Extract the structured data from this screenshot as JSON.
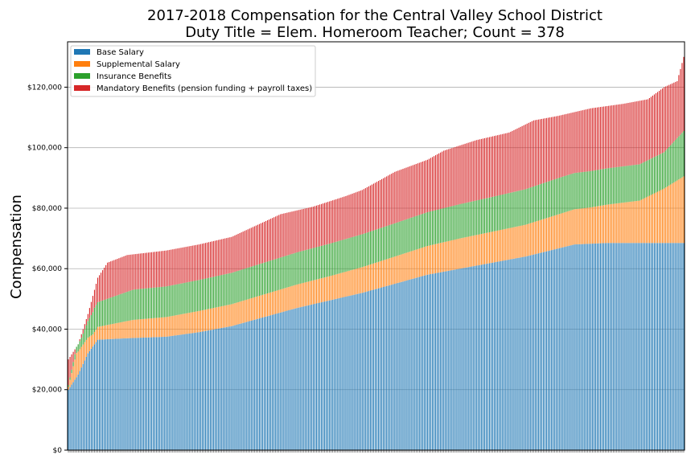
{
  "chart_data": {
    "type": "bar",
    "stacked": true,
    "title": "2017-2018 Compensation for the Central Valley School District",
    "subtitle": "Duty Title = Elem. Homeroom Teacher; Count = 378",
    "xlabel": "",
    "ylabel": "Compensation",
    "ylim": [
      0,
      135000
    ],
    "yticks": [
      0,
      20000,
      40000,
      60000,
      80000,
      100000,
      120000
    ],
    "ytick_labels": [
      "$0",
      "$20,000",
      "$40,000",
      "$60,000",
      "$80,000",
      "$100,000",
      "$120,000"
    ],
    "grid": "horizontal",
    "legend_position": "top-left",
    "colors": {
      "base": "#1f77b4",
      "supplemental": "#ff7f0e",
      "insurance": "#2ca02c",
      "mandatory": "#d62728"
    },
    "series_names": [
      "Base Salary",
      "Supplemental Salary",
      "Insurance Benefits",
      "Mandatory Benefits (pension funding + payroll taxes)"
    ],
    "count": 378,
    "total_profile": [
      [
        0,
        30000
      ],
      [
        6,
        35000
      ],
      [
        12,
        45000
      ],
      [
        18,
        57000
      ],
      [
        24,
        62000
      ],
      [
        36,
        64500
      ],
      [
        60,
        66000
      ],
      [
        80,
        68000
      ],
      [
        100,
        70500
      ],
      [
        110,
        73000
      ],
      [
        130,
        78000
      ],
      [
        150,
        80500
      ],
      [
        170,
        84000
      ],
      [
        180,
        86000
      ],
      [
        190,
        89000
      ],
      [
        200,
        92000
      ],
      [
        220,
        96000
      ],
      [
        230,
        99000
      ],
      [
        250,
        102500
      ],
      [
        270,
        105000
      ],
      [
        285,
        109000
      ],
      [
        300,
        110500
      ],
      [
        320,
        113000
      ],
      [
        340,
        114500
      ],
      [
        355,
        116000
      ],
      [
        365,
        120000
      ],
      [
        373,
        122000
      ],
      [
        377,
        130000
      ]
    ],
    "base_profile": [
      [
        0,
        20000
      ],
      [
        6,
        25000
      ],
      [
        12,
        32000
      ],
      [
        18,
        36500
      ],
      [
        36,
        37000
      ],
      [
        60,
        37500
      ],
      [
        80,
        39000
      ],
      [
        100,
        41000
      ],
      [
        120,
        44000
      ],
      [
        140,
        47000
      ],
      [
        160,
        49500
      ],
      [
        180,
        52000
      ],
      [
        200,
        55000
      ],
      [
        220,
        58000
      ],
      [
        240,
        60000
      ],
      [
        260,
        62000
      ],
      [
        280,
        64000
      ],
      [
        295,
        66000
      ],
      [
        310,
        68000
      ],
      [
        330,
        68500
      ],
      [
        377,
        68500
      ]
    ],
    "supplemental_profile": [
      [
        0,
        1000
      ],
      [
        5,
        8000
      ],
      [
        15,
        4000
      ],
      [
        40,
        6000
      ],
      [
        80,
        7000
      ],
      [
        120,
        7500
      ],
      [
        160,
        8000
      ],
      [
        200,
        9000
      ],
      [
        240,
        10000
      ],
      [
        280,
        10500
      ],
      [
        320,
        12000
      ],
      [
        350,
        14000
      ],
      [
        365,
        18000
      ],
      [
        377,
        22000
      ]
    ],
    "insurance_profile": [
      [
        0,
        500
      ],
      [
        8,
        3000
      ],
      [
        16,
        8000
      ],
      [
        40,
        10000
      ],
      [
        120,
        10500
      ],
      [
        200,
        11000
      ],
      [
        260,
        11500
      ],
      [
        300,
        12000
      ],
      [
        340,
        12000
      ],
      [
        365,
        12000
      ],
      [
        377,
        15000
      ]
    ]
  },
  "legend": {
    "items": [
      {
        "label": "Base Salary",
        "color": "#1f77b4"
      },
      {
        "label": "Supplemental Salary",
        "color": "#ff7f0e"
      },
      {
        "label": "Insurance Benefits",
        "color": "#2ca02c"
      },
      {
        "label": "Mandatory Benefits (pension funding + payroll taxes)",
        "color": "#d62728"
      }
    ]
  }
}
